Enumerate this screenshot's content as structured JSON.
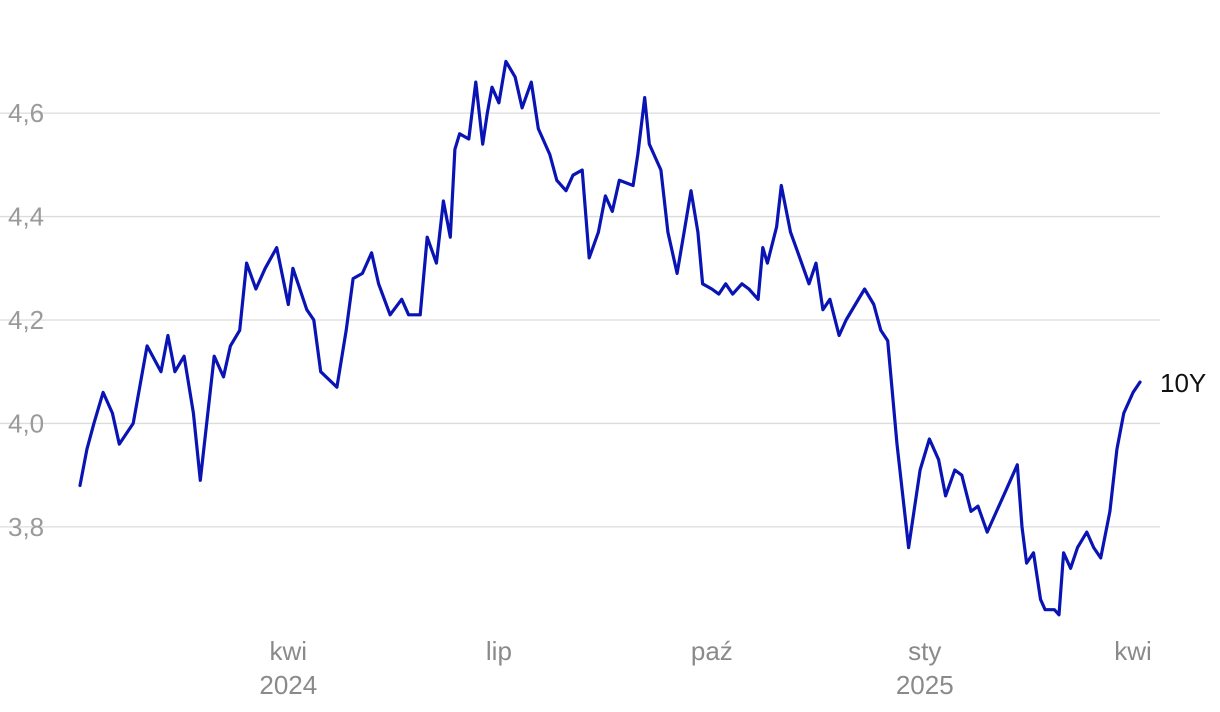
{
  "chart_data": {
    "type": "line",
    "title": "",
    "xlabel": "",
    "ylabel": "",
    "ylim": [
      3.62,
      4.78
    ],
    "yticks": [
      3.8,
      4.0,
      4.2,
      4.4,
      4.6
    ],
    "y_tick_labels": [
      "3,8",
      "4,0",
      "4,2",
      "4,4",
      "4,6"
    ],
    "xlim": [
      "2024-01-02",
      "2025-04-04"
    ],
    "x_ticks": [
      {
        "date": "2024-04-01",
        "label": "kwi",
        "year": "2024"
      },
      {
        "date": "2024-07-01",
        "label": "lip",
        "year": ""
      },
      {
        "date": "2024-10-01",
        "label": "paź",
        "year": ""
      },
      {
        "date": "2025-01-01",
        "label": "sty",
        "year": "2025"
      },
      {
        "date": "2025-04-01",
        "label": "kwi",
        "year": ""
      }
    ],
    "grid": true,
    "legend": "none",
    "series": [
      {
        "name": "10Y",
        "color": "#0a14b4",
        "points": [
          [
            "2024-01-02",
            3.88
          ],
          [
            "2024-01-05",
            3.95
          ],
          [
            "2024-01-08",
            4.0
          ],
          [
            "2024-01-12",
            4.06
          ],
          [
            "2024-01-16",
            4.02
          ],
          [
            "2024-01-19",
            3.96
          ],
          [
            "2024-01-25",
            4.0
          ],
          [
            "2024-01-31",
            4.15
          ],
          [
            "2024-02-06",
            4.1
          ],
          [
            "2024-02-09",
            4.17
          ],
          [
            "2024-02-12",
            4.1
          ],
          [
            "2024-02-16",
            4.13
          ],
          [
            "2024-02-20",
            4.02
          ],
          [
            "2024-02-23",
            3.89
          ],
          [
            "2024-02-29",
            4.13
          ],
          [
            "2024-03-04",
            4.09
          ],
          [
            "2024-03-07",
            4.15
          ],
          [
            "2024-03-11",
            4.18
          ],
          [
            "2024-03-14",
            4.31
          ],
          [
            "2024-03-18",
            4.26
          ],
          [
            "2024-03-22",
            4.3
          ],
          [
            "2024-03-27",
            4.34
          ],
          [
            "2024-04-01",
            4.23
          ],
          [
            "2024-04-03",
            4.3
          ],
          [
            "2024-04-09",
            4.22
          ],
          [
            "2024-04-12",
            4.2
          ],
          [
            "2024-04-15",
            4.1
          ],
          [
            "2024-04-22",
            4.07
          ],
          [
            "2024-04-26",
            4.18
          ],
          [
            "2024-04-29",
            4.28
          ],
          [
            "2024-05-03",
            4.29
          ],
          [
            "2024-05-07",
            4.33
          ],
          [
            "2024-05-10",
            4.27
          ],
          [
            "2024-05-15",
            4.21
          ],
          [
            "2024-05-20",
            4.24
          ],
          [
            "2024-05-23",
            4.21
          ],
          [
            "2024-05-28",
            4.21
          ],
          [
            "2024-05-31",
            4.36
          ],
          [
            "2024-06-04",
            4.31
          ],
          [
            "2024-06-07",
            4.43
          ],
          [
            "2024-06-10",
            4.36
          ],
          [
            "2024-06-12",
            4.53
          ],
          [
            "2024-06-14",
            4.56
          ],
          [
            "2024-06-18",
            4.55
          ],
          [
            "2024-06-21",
            4.66
          ],
          [
            "2024-06-24",
            4.54
          ],
          [
            "2024-06-26",
            4.6
          ],
          [
            "2024-06-28",
            4.65
          ],
          [
            "2024-07-01",
            4.62
          ],
          [
            "2024-07-04",
            4.7
          ],
          [
            "2024-07-08",
            4.67
          ],
          [
            "2024-07-11",
            4.61
          ],
          [
            "2024-07-15",
            4.66
          ],
          [
            "2024-07-18",
            4.57
          ],
          [
            "2024-07-23",
            4.52
          ],
          [
            "2024-07-26",
            4.47
          ],
          [
            "2024-07-30",
            4.45
          ],
          [
            "2024-08-02",
            4.48
          ],
          [
            "2024-08-06",
            4.49
          ],
          [
            "2024-08-09",
            4.32
          ],
          [
            "2024-08-13",
            4.37
          ],
          [
            "2024-08-16",
            4.44
          ],
          [
            "2024-08-19",
            4.41
          ],
          [
            "2024-08-22",
            4.47
          ],
          [
            "2024-08-28",
            4.46
          ],
          [
            "2024-08-30",
            4.52
          ],
          [
            "2024-09-02",
            4.63
          ],
          [
            "2024-09-04",
            4.54
          ],
          [
            "2024-09-09",
            4.49
          ],
          [
            "2024-09-12",
            4.37
          ],
          [
            "2024-09-16",
            4.29
          ],
          [
            "2024-09-19",
            4.37
          ],
          [
            "2024-09-22",
            4.45
          ],
          [
            "2024-09-25",
            4.37
          ],
          [
            "2024-09-27",
            4.27
          ],
          [
            "2024-10-01",
            4.26
          ],
          [
            "2024-10-04",
            4.25
          ],
          [
            "2024-10-07",
            4.27
          ],
          [
            "2024-10-10",
            4.25
          ],
          [
            "2024-10-14",
            4.27
          ],
          [
            "2024-10-17",
            4.26
          ],
          [
            "2024-10-21",
            4.24
          ],
          [
            "2024-10-23",
            4.34
          ],
          [
            "2024-10-25",
            4.31
          ],
          [
            "2024-10-29",
            4.38
          ],
          [
            "2024-10-31",
            4.46
          ],
          [
            "2024-11-04",
            4.37
          ],
          [
            "2024-11-08",
            4.32
          ],
          [
            "2024-11-12",
            4.27
          ],
          [
            "2024-11-15",
            4.31
          ],
          [
            "2024-11-18",
            4.22
          ],
          [
            "2024-11-21",
            4.24
          ],
          [
            "2024-11-25",
            4.17
          ],
          [
            "2024-11-28",
            4.2
          ],
          [
            "2024-12-02",
            4.23
          ],
          [
            "2024-12-06",
            4.26
          ],
          [
            "2024-12-10",
            4.23
          ],
          [
            "2024-12-13",
            4.18
          ],
          [
            "2024-12-16",
            4.16
          ],
          [
            "2024-12-20",
            3.96
          ],
          [
            "2024-12-25",
            3.76
          ],
          [
            "2024-12-30",
            3.91
          ],
          [
            "2025-01-03",
            3.97
          ],
          [
            "2025-01-07",
            3.93
          ],
          [
            "2025-01-10",
            3.86
          ],
          [
            "2025-01-14",
            3.91
          ],
          [
            "2025-01-17",
            3.9
          ],
          [
            "2025-01-21",
            3.83
          ],
          [
            "2025-01-24",
            3.84
          ],
          [
            "2025-01-28",
            3.79
          ],
          [
            "2025-02-01",
            3.83
          ],
          [
            "2025-02-05",
            3.87
          ],
          [
            "2025-02-10",
            3.92
          ],
          [
            "2025-02-12",
            3.8
          ],
          [
            "2025-02-14",
            3.73
          ],
          [
            "2025-02-17",
            3.75
          ],
          [
            "2025-02-20",
            3.66
          ],
          [
            "2025-02-22",
            3.64
          ],
          [
            "2025-02-26",
            3.64
          ],
          [
            "2025-02-28",
            3.63
          ],
          [
            "2025-03-02",
            3.75
          ],
          [
            "2025-03-05",
            3.72
          ],
          [
            "2025-03-08",
            3.76
          ],
          [
            "2025-03-12",
            3.79
          ],
          [
            "2025-03-15",
            3.76
          ],
          [
            "2025-03-18",
            3.74
          ],
          [
            "2025-03-22",
            3.83
          ],
          [
            "2025-03-25",
            3.95
          ],
          [
            "2025-03-28",
            4.02
          ],
          [
            "2025-04-01",
            4.06
          ],
          [
            "2025-04-04",
            4.08
          ]
        ]
      }
    ]
  },
  "series_label": "10Y"
}
